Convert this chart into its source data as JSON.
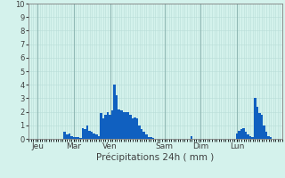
{
  "xlabel": "Précipitations 24h ( mm )",
  "ylim": [
    0,
    10
  ],
  "background_color": "#d4f2ec",
  "bar_color": "#1060c0",
  "grid_color_minor": "#b8ddd8",
  "grid_color_major": "#90b8b4",
  "tick_label_color": "#404040",
  "day_labels": [
    "Jeu",
    "Mar",
    "Ven",
    "Sam",
    "Dim",
    "Lun"
  ],
  "day_positions": [
    4,
    20,
    36,
    60,
    76,
    92
  ],
  "values": [
    0.0,
    0.0,
    0.0,
    0.0,
    0.0,
    0.0,
    0.0,
    0.0,
    0.0,
    0.0,
    0.0,
    0.0,
    0.0,
    0.0,
    0.0,
    0.0,
    0.5,
    0.3,
    0.4,
    0.2,
    0.1,
    0.15,
    0.1,
    0.05,
    0.8,
    0.7,
    1.0,
    0.6,
    0.5,
    0.4,
    0.3,
    0.2,
    1.9,
    1.5,
    1.8,
    2.0,
    1.8,
    2.1,
    4.0,
    3.2,
    2.2,
    2.1,
    2.0,
    2.0,
    2.0,
    1.8,
    1.5,
    1.6,
    1.5,
    1.0,
    0.7,
    0.5,
    0.3,
    0.15,
    0.1,
    0.05,
    0.0,
    0.0,
    0.0,
    0.0,
    0.0,
    0.0,
    0.0,
    0.0,
    0.0,
    0.0,
    0.0,
    0.0,
    0.0,
    0.0,
    0.0,
    0.0,
    0.2,
    0.0,
    0.0,
    0.0,
    0.0,
    0.0,
    0.0,
    0.0,
    0.0,
    0.0,
    0.0,
    0.0,
    0.0,
    0.0,
    0.0,
    0.0,
    0.0,
    0.0,
    0.0,
    0.0,
    0.4,
    0.6,
    0.7,
    0.8,
    0.5,
    0.3,
    0.2,
    0.1,
    3.0,
    2.4,
    1.9,
    1.8,
    1.0,
    0.5,
    0.2,
    0.1,
    0.0,
    0.0,
    0.0,
    0.0
  ]
}
